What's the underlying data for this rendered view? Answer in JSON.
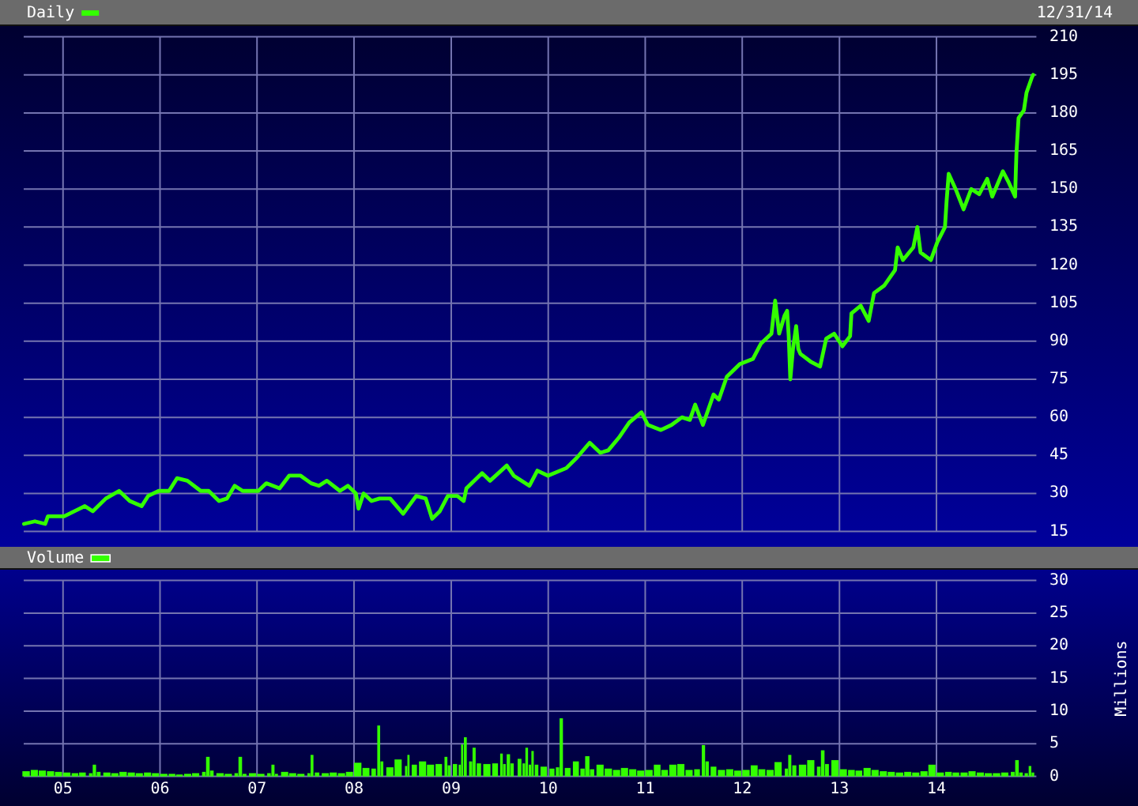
{
  "chart_data": [
    {
      "type": "line",
      "annotations": [
        "12/31/14"
      ],
      "legend": "top left",
      "grid": true,
      "tick_labels": "y",
      "xlim": [
        "2004-08-06",
        "2015-01-12"
      ],
      "ylim": [
        15,
        210
      ],
      "yticks": [
        15,
        30,
        45,
        60,
        75,
        90,
        105,
        120,
        135,
        150,
        165,
        180,
        195,
        210
      ],
      "xticks": [
        {
          "value": "2005",
          "label": null
        },
        {
          "value": "2006",
          "label": null
        },
        {
          "value": "2007",
          "label": null
        },
        {
          "value": "2008",
          "label": null
        },
        {
          "value": "2009",
          "label": null
        },
        {
          "value": "2010",
          "label": null
        },
        {
          "value": "2011",
          "label": null
        },
        {
          "value": "2012",
          "label": null
        },
        {
          "value": "2013",
          "label": null
        },
        {
          "value": "2014",
          "label": null
        }
      ],
      "x": [
        "2004-08-07",
        "2004-09-17",
        "2004-10-26",
        "2004-11-05",
        "2005-01-05",
        "2005-03-05",
        "2005-03-24",
        "2005-04-23",
        "2005-06-11",
        "2005-07-31",
        "2005-09-09",
        "2005-10-24",
        "2005-11-17",
        "2005-12-27",
        "2006-02-04",
        "2006-03-06",
        "2006-04-14",
        "2006-06-03",
        "2006-07-03",
        "2006-08-11",
        "2006-09-10",
        "2006-10-09",
        "2006-11-08",
        "2007-01-06",
        "2007-02-05",
        "2007-03-27",
        "2007-05-02",
        "2007-06-14",
        "2007-07-24",
        "2007-08-22",
        "2007-09-21",
        "2007-11-09",
        "2007-12-09",
        "2008-01-08",
        "2008-01-18",
        "2008-02-06",
        "2008-03-07",
        "2008-04-06",
        "2008-05-16",
        "2008-07-04",
        "2008-08-22",
        "2008-09-27",
        "2008-10-21",
        "2008-11-19",
        "2008-12-19",
        "2009-01-24",
        "2009-02-17",
        "2009-02-27",
        "2009-04-27",
        "2009-05-27",
        "2009-07-29",
        "2009-08-24",
        "2009-10-22",
        "2009-11-21",
        "2009-12-31",
        "2010-03-10",
        "2010-04-18",
        "2010-06-06",
        "2010-07-16",
        "2010-08-15",
        "2010-09-24",
        "2010-11-02",
        "2010-12-18",
        "2011-01-11",
        "2011-03-01",
        "2011-04-10",
        "2011-05-19",
        "2011-06-18",
        "2011-07-08",
        "2011-08-06",
        "2011-09-15",
        "2011-10-05",
        "2011-11-04",
        "2011-12-23",
        "2012-02-10",
        "2012-03-11",
        "2012-04-20",
        "2012-05-04",
        "2012-05-19",
        "2012-06-08",
        "2012-06-18",
        "2012-06-24",
        "2012-06-30",
        "2012-07-10",
        "2012-07-22",
        "2012-07-30",
        "2012-08-07",
        "2012-09-14",
        "2012-10-20",
        "2012-11-12",
        "2012-12-12",
        "2013-01-12",
        "2013-02-10",
        "2013-02-15",
        "2013-03-22",
        "2013-04-21",
        "2013-05-11",
        "2013-06-19",
        "2013-07-29",
        "2013-08-08",
        "2013-08-28",
        "2013-10-06",
        "2013-10-21",
        "2013-11-02",
        "2013-12-11",
        "2014-01-04",
        "2014-02-02",
        "2014-02-08",
        "2014-02-16",
        "2014-03-14",
        "2014-04-13",
        "2014-05-12",
        "2014-06-11",
        "2014-07-11",
        "2014-07-30",
        "2014-09-08",
        "2014-09-28",
        "2014-10-24",
        "2014-10-27",
        "2014-10-29",
        "2014-11-06",
        "2014-11-26",
        "2014-12-06",
        "2014-12-26",
        "2014-12-31"
      ],
      "series": [
        {
          "name": "Daily",
          "color": "#33ff00",
          "values": [
            18,
            19,
            18,
            21,
            21,
            24,
            25,
            23,
            28,
            31,
            27,
            25,
            29,
            31,
            31,
            36,
            35,
            31,
            31,
            27,
            28,
            33,
            31,
            31,
            34,
            32,
            37,
            37,
            34,
            33,
            35,
            31,
            33,
            30,
            24,
            30,
            27,
            28,
            28,
            22,
            29,
            28,
            20,
            23,
            29,
            29,
            27,
            32,
            38,
            35,
            41,
            37,
            33,
            39,
            37,
            40,
            44,
            50,
            46,
            47,
            52,
            58,
            62,
            57,
            55,
            57,
            60,
            59,
            65,
            57,
            69,
            67,
            76,
            81,
            83,
            89,
            93,
            106,
            93,
            100,
            102,
            92,
            75,
            87,
            96,
            87,
            85,
            82,
            80,
            91,
            93,
            88,
            92,
            101,
            104,
            98,
            109,
            112,
            118,
            127,
            122,
            127,
            135,
            125,
            122,
            129,
            135,
            145,
            156,
            150,
            142,
            150,
            148,
            154,
            147,
            157,
            153,
            147,
            158,
            164,
            178,
            181,
            188,
            194,
            195
          ]
        }
      ]
    },
    {
      "type": "bar",
      "ylabel": "Millions",
      "legend": "top left",
      "grid": true,
      "xlim": [
        "2004-08-06",
        "2015-01-12"
      ],
      "ylim": [
        0,
        30
      ],
      "yticks": [
        0,
        5,
        10,
        15,
        20,
        25,
        30
      ],
      "xticks": [
        {
          "value": "2005",
          "label": "05"
        },
        {
          "value": "2006",
          "label": "06"
        },
        {
          "value": "2007",
          "label": "07"
        },
        {
          "value": "2008",
          "label": "08"
        },
        {
          "value": "2009",
          "label": "09"
        },
        {
          "value": "2010",
          "label": "10"
        },
        {
          "value": "2011",
          "label": "11"
        },
        {
          "value": "2012",
          "label": "12"
        },
        {
          "value": "2013",
          "label": "13"
        },
        {
          "value": "2014",
          "label": "14"
        }
      ],
      "x": [
        "2004-08-15",
        "2004-09-15",
        "2004-10-15",
        "2004-11-15",
        "2004-12-15",
        "2005-01-15",
        "2005-02-15",
        "2005-03-15",
        "2005-04-15",
        "2005-04-29",
        "2005-05-15",
        "2005-06-15",
        "2005-07-15",
        "2005-08-15",
        "2005-09-15",
        "2005-10-15",
        "2005-11-15",
        "2005-12-15",
        "2006-01-15",
        "2006-02-15",
        "2006-03-15",
        "2006-04-15",
        "2006-05-15",
        "2006-06-15",
        "2006-06-30",
        "2006-07-15",
        "2006-08-15",
        "2006-09-15",
        "2006-10-15",
        "2006-10-30",
        "2006-11-15",
        "2006-12-15",
        "2007-01-15",
        "2007-02-15",
        "2007-03-02",
        "2007-03-15",
        "2007-04-15",
        "2007-05-15",
        "2007-06-15",
        "2007-07-15",
        "2007-07-27",
        "2007-08-15",
        "2007-09-15",
        "2007-10-15",
        "2007-11-15",
        "2007-12-15",
        "2008-01-15",
        "2008-02-15",
        "2008-03-15",
        "2008-04-03",
        "2008-04-15",
        "2008-05-15",
        "2008-06-15",
        "2008-07-15",
        "2008-07-24",
        "2008-08-15",
        "2008-09-15",
        "2008-10-15",
        "2008-11-15",
        "2008-12-12",
        "2008-12-24",
        "2009-01-15",
        "2009-02-02",
        "2009-02-11",
        "2009-02-23",
        "2009-03-15",
        "2009-03-28",
        "2009-04-15",
        "2009-05-15",
        "2009-06-15",
        "2009-07-09",
        "2009-07-20",
        "2009-08-04",
        "2009-08-18",
        "2009-09-15",
        "2009-10-01",
        "2009-10-12",
        "2009-10-24",
        "2009-11-03",
        "2009-11-18",
        "2009-12-15",
        "2010-01-15",
        "2010-02-05",
        "2010-02-19",
        "2010-03-15",
        "2010-04-15",
        "2010-05-10",
        "2010-05-28",
        "2010-06-15",
        "2010-07-15",
        "2010-08-15",
        "2010-09-15",
        "2010-10-15",
        "2010-11-15",
        "2010-12-15",
        "2011-01-15",
        "2011-02-15",
        "2011-03-15",
        "2011-04-15",
        "2011-05-15",
        "2011-06-15",
        "2011-07-15",
        "2011-08-08",
        "2011-08-22",
        "2011-09-15",
        "2011-10-15",
        "2011-11-15",
        "2011-12-15",
        "2012-01-15",
        "2012-02-15",
        "2012-03-15",
        "2012-04-15",
        "2012-05-15",
        "2012-06-15",
        "2012-06-28",
        "2012-07-15",
        "2012-08-15",
        "2012-09-15",
        "2012-10-15",
        "2012-10-30",
        "2012-11-15",
        "2012-12-15",
        "2013-01-15",
        "2013-02-15",
        "2013-03-15",
        "2013-04-15",
        "2013-05-15",
        "2013-06-15",
        "2013-07-15",
        "2013-08-15",
        "2013-09-15",
        "2013-10-15",
        "2013-11-15",
        "2013-12-15",
        "2014-01-15",
        "2014-02-15",
        "2014-03-15",
        "2014-04-15",
        "2014-05-15",
        "2014-06-15",
        "2014-07-15",
        "2014-08-15",
        "2014-09-15",
        "2014-10-15",
        "2014-10-31",
        "2014-11-15",
        "2014-12-05",
        "2014-12-19",
        "2014-12-30"
      ],
      "series": [
        {
          "name": "Volume",
          "color": "#33ff00",
          "values": [
            0.8,
            1.0,
            0.9,
            0.8,
            0.7,
            0.6,
            0.5,
            0.6,
            0.5,
            1.8,
            0.7,
            0.6,
            0.5,
            0.7,
            0.6,
            0.5,
            0.6,
            0.5,
            0.4,
            0.4,
            0.3,
            0.4,
            0.5,
            0.7,
            3.0,
            0.9,
            0.5,
            0.4,
            0.5,
            3.0,
            0.4,
            0.5,
            0.4,
            0.5,
            1.8,
            0.4,
            0.7,
            0.5,
            0.4,
            0.5,
            3.3,
            0.6,
            0.5,
            0.6,
            0.5,
            0.7,
            2.1,
            1.3,
            1.2,
            7.8,
            2.3,
            1.4,
            2.6,
            1.6,
            3.3,
            1.8,
            2.3,
            1.8,
            1.9,
            3.0,
            1.7,
            1.9,
            1.8,
            4.9,
            6.0,
            2.3,
            4.4,
            2.0,
            1.9,
            2.0,
            3.5,
            1.9,
            3.4,
            2.0,
            2.7,
            2.0,
            4.4,
            1.8,
            3.9,
            1.8,
            1.5,
            1.2,
            1.4,
            8.9,
            1.3,
            2.3,
            1.2,
            3.1,
            1.1,
            1.8,
            1.2,
            1.0,
            1.3,
            1.1,
            0.9,
            1.0,
            1.8,
            1.0,
            1.8,
            1.9,
            1.0,
            1.1,
            4.8,
            2.3,
            1.5,
            1.0,
            1.1,
            0.9,
            1.0,
            1.7,
            1.1,
            1.0,
            2.2,
            1.2,
            3.3,
            1.7,
            1.8,
            2.5,
            1.5,
            4.0,
            1.9,
            2.5,
            1.1,
            1.0,
            0.9,
            1.3,
            1.0,
            0.8,
            0.7,
            0.6,
            0.7,
            0.6,
            0.8,
            1.8,
            0.6,
            0.7,
            0.6,
            0.6,
            0.8,
            0.6,
            0.5,
            0.5,
            0.6,
            0.7,
            2.5,
            0.6,
            0.5,
            1.6,
            0.6
          ]
        }
      ]
    }
  ]
}
